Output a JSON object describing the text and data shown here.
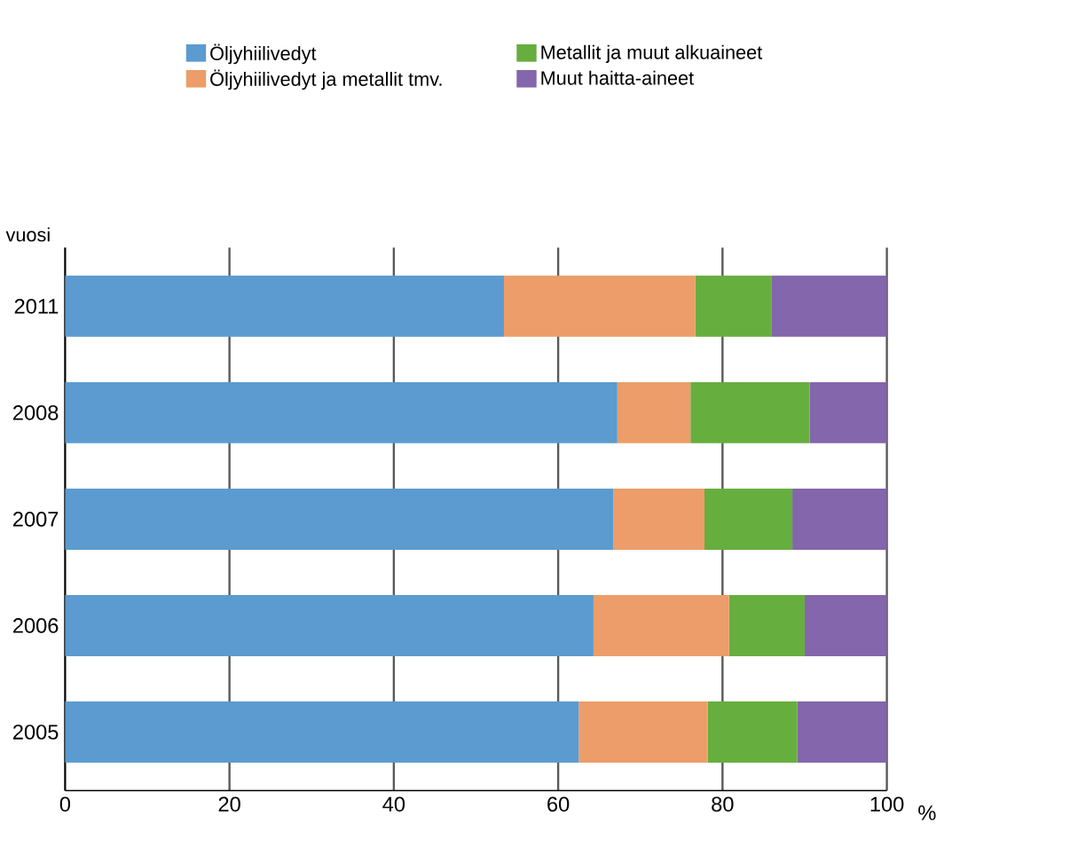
{
  "chart_data": {
    "type": "bar",
    "orientation": "horizontal",
    "stacked": true,
    "categories": [
      "2011",
      "2008",
      "2007",
      "2006",
      "2005"
    ],
    "series": [
      {
        "name": "Öljyhiilivedyt",
        "color": "#5b9bd0",
        "values": [
          53.4,
          67.2,
          66.7,
          64.3,
          62.5
        ]
      },
      {
        "name": "Öljyhiilivedyt ja metallit tmv.",
        "color": "#ec9d69",
        "values": [
          23.3,
          8.9,
          11.1,
          16.5,
          15.7
        ]
      },
      {
        "name": "Metallit ja muut alkuaineet",
        "color": "#66ae3e",
        "values": [
          9.3,
          14.5,
          10.7,
          9.2,
          10.9
        ]
      },
      {
        "name": "Muut haitta-aineet",
        "color": "#8366ab",
        "values": [
          14.0,
          9.4,
          11.5,
          10.0,
          10.9
        ]
      }
    ],
    "xlim": [
      0,
      100
    ],
    "xticks": [
      0,
      20,
      40,
      60,
      80,
      100
    ],
    "ylabel": "vuosi",
    "xlabel": "%",
    "grid": "x",
    "legend": "top"
  }
}
